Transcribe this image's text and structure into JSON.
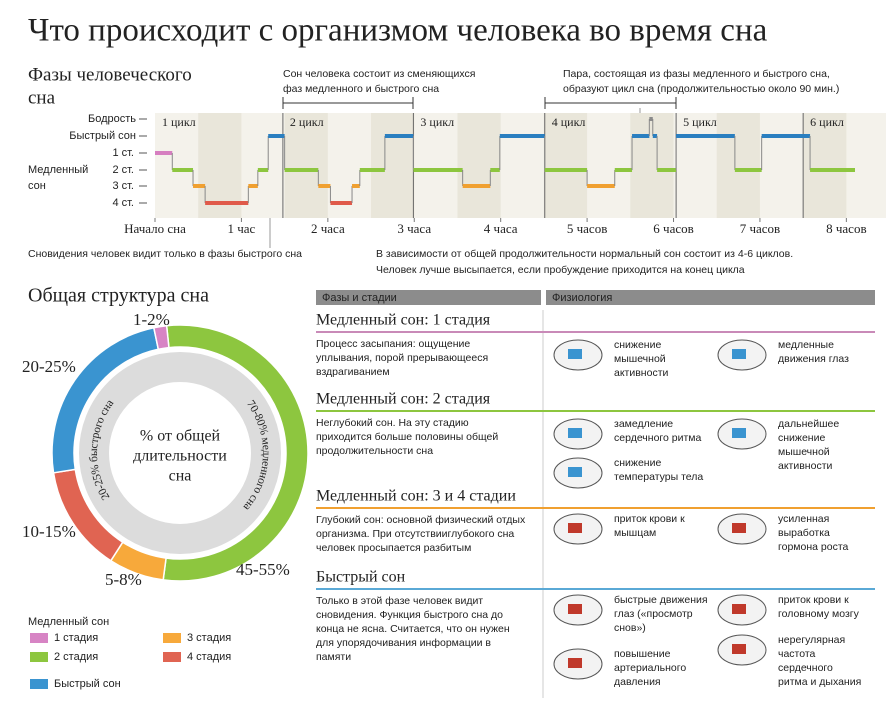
{
  "header": {
    "title": "Что происходит с организмом человека во время сна"
  },
  "phases": {
    "title": [
      "Фазы человеческого",
      "сна"
    ],
    "note_top_left": [
      "Сон человека состоит из сменяющихся",
      "фаз медленного и быстрого сна"
    ],
    "note_top_right": [
      "Пара, состоящая из фазы медленного и быстрого сна,",
      "образуют цикл сна (продолжительностью около 90 мин.)"
    ],
    "note_bottom_left": "Сновидения человек видит только в фазы быстрого сна",
    "note_bottom_right": [
      "В зависимости от общей продолжительности нормальный сон состоит из 4-6 циклов.",
      "Человек лучше высыпается, если пробуждение приходится на конец цикла"
    ],
    "hypnogram": {
      "levels": [
        "Бодрость",
        "Быстрый сон",
        "1 ст.",
        "2 ст.",
        "3 ст.",
        "4 ст."
      ],
      "level_colors": [
        "#8a8a8a",
        "#2a7fc0",
        "#d67fc0",
        "#8dc63f",
        "#f0a030",
        "#e05a4a"
      ],
      "level_group_label": [
        "Медленный",
        "сон"
      ],
      "xlim": [
        0,
        8.1
      ],
      "xticks": [
        {
          "value": 0,
          "label": "Начало сна"
        },
        {
          "value": 1,
          "label": "1 час"
        },
        {
          "value": 2,
          "label": "2 часа"
        },
        {
          "value": 3,
          "label": "3 часа"
        },
        {
          "value": 4,
          "label": "4 часа"
        },
        {
          "value": 5,
          "label": "5 часов"
        },
        {
          "value": 6,
          "label": "6 часов"
        },
        {
          "value": 7,
          "label": "7 часов"
        },
        {
          "value": 8,
          "label": "8 часов"
        }
      ],
      "cycles": [
        {
          "label": "1 цикл",
          "start": 0
        },
        {
          "label": "2 цикл",
          "start": 1.48
        },
        {
          "label": "3 цикл",
          "start": 2.99
        },
        {
          "label": "4 цикл",
          "start": 4.51
        },
        {
          "label": "5 цикл",
          "start": 6.03
        },
        {
          "label": "6 цикл",
          "start": 7.5
        }
      ],
      "segments": [
        {
          "start": 0,
          "end": 0.2,
          "stage": 2
        },
        {
          "start": 0.2,
          "end": 0.44,
          "stage": 3
        },
        {
          "start": 0.44,
          "end": 0.58,
          "stage": 4
        },
        {
          "start": 0.58,
          "end": 1.08,
          "stage": 5
        },
        {
          "start": 1.08,
          "end": 1.19,
          "stage": 4
        },
        {
          "start": 1.19,
          "end": 1.31,
          "stage": 3
        },
        {
          "start": 1.31,
          "end": 1.5,
          "stage": 1
        },
        {
          "start": 1.5,
          "end": 1.89,
          "stage": 3
        },
        {
          "start": 1.89,
          "end": 2.03,
          "stage": 4
        },
        {
          "start": 2.03,
          "end": 2.28,
          "stage": 5
        },
        {
          "start": 2.28,
          "end": 2.37,
          "stage": 4
        },
        {
          "start": 2.37,
          "end": 2.66,
          "stage": 3
        },
        {
          "start": 2.66,
          "end": 2.99,
          "stage": 1
        },
        {
          "start": 2.99,
          "end": 3.56,
          "stage": 3
        },
        {
          "start": 3.56,
          "end": 3.88,
          "stage": 4
        },
        {
          "start": 3.88,
          "end": 3.99,
          "stage": 3
        },
        {
          "start": 3.99,
          "end": 4.51,
          "stage": 1
        },
        {
          "start": 4.51,
          "end": 5.0,
          "stage": 3
        },
        {
          "start": 5.0,
          "end": 5.32,
          "stage": 4
        },
        {
          "start": 5.32,
          "end": 5.52,
          "stage": 3
        },
        {
          "start": 5.52,
          "end": 5.72,
          "stage": 1
        },
        {
          "start": 5.72,
          "end": 5.76,
          "stage": 0
        },
        {
          "start": 5.76,
          "end": 5.81,
          "stage": 1
        },
        {
          "start": 5.81,
          "end": 6.03,
          "stage": 3
        },
        {
          "start": 6.03,
          "end": 6.71,
          "stage": 1
        },
        {
          "start": 6.71,
          "end": 7.02,
          "stage": 3
        },
        {
          "start": 7.02,
          "end": 7.58,
          "stage": 1
        },
        {
          "start": 7.58,
          "end": 8.1,
          "stage": 3
        }
      ]
    }
  },
  "structure": {
    "title": "Общая структура сна",
    "center_text": [
      "% от общей",
      "длительности",
      "сна"
    ],
    "ring_labels": [
      "20-25% быстрого сна",
      "70-80% медленного сна"
    ],
    "segments": [
      {
        "name": "2 стадия",
        "label": "45-55%",
        "low": 45,
        "high": 55,
        "color": "#8dc63f"
      },
      {
        "name": "3 стадия",
        "label": "5-8%",
        "low": 5,
        "high": 8,
        "color": "#f7a93b"
      },
      {
        "name": "4 стадия",
        "label": "10-15%",
        "low": 10,
        "high": 15,
        "color": "#e06452"
      },
      {
        "name": "Быстрый сон",
        "label": "20-25%",
        "low": 20,
        "high": 25,
        "color": "#3a94d0"
      },
      {
        "name": "1 стадия",
        "label": "1-2%",
        "low": 1,
        "high": 2,
        "color": "#d784c4"
      }
    ],
    "legend_title": "Медленный сон"
  },
  "table": {
    "headers": [
      "Фазы и стадии",
      "Физиология"
    ],
    "sections": [
      {
        "title": "Медленный сон: 1 стадия",
        "color": "#c98ab8",
        "description": [
          "Процесс засыпания: ощущение",
          "уплывания, порой прерывающееся",
          "вздрагиванием"
        ],
        "effects": [
          [
            "снижение",
            "мышечной",
            "активности"
          ],
          [
            "медленные",
            "движения глаз"
          ]
        ]
      },
      {
        "title": "Медленный сон: 2 стадия",
        "color": "#8dc63f",
        "description": [
          "Неглубокий сон. На эту стадию",
          "приходится больше половины общей",
          "продолжительности сна"
        ],
        "effects": [
          [
            "замедление",
            "сердечного ритма"
          ],
          [
            "дальнейшее",
            "снижение",
            "мышечной",
            "активности"
          ],
          [
            "снижение",
            "температуры тела"
          ]
        ]
      },
      {
        "title": "Медленный сон: 3 и 4 стадии",
        "color": "#f0a030",
        "description": [
          "Глубокий сон: основной физический отдых",
          "организма. При отсутствииглубокого сна",
          "человек просыпается разбитым"
        ],
        "effects": [
          [
            "приток крови к",
            "мышцам"
          ],
          [
            "усиленная",
            "выработка",
            "гормона роста"
          ]
        ]
      },
      {
        "title": "Быстрый сон",
        "color": "#5aa9d6",
        "description": [
          "Только в этой фазе человек видит",
          "сновидения. Функция быстрого сна до",
          "конца не ясна. Считается, что он нужен",
          "для упорядочивания информации в",
          "памяти"
        ],
        "effects": [
          [
            "быстрые движения",
            "глаз («просмотр",
            "снов»)"
          ],
          [
            "приток крови к",
            "головному мозгу"
          ],
          [
            "повышение",
            "артериального",
            "давления"
          ],
          [
            "нерегулярная",
            "частота",
            "сердечного",
            "ритма и дыхания"
          ]
        ]
      }
    ]
  }
}
